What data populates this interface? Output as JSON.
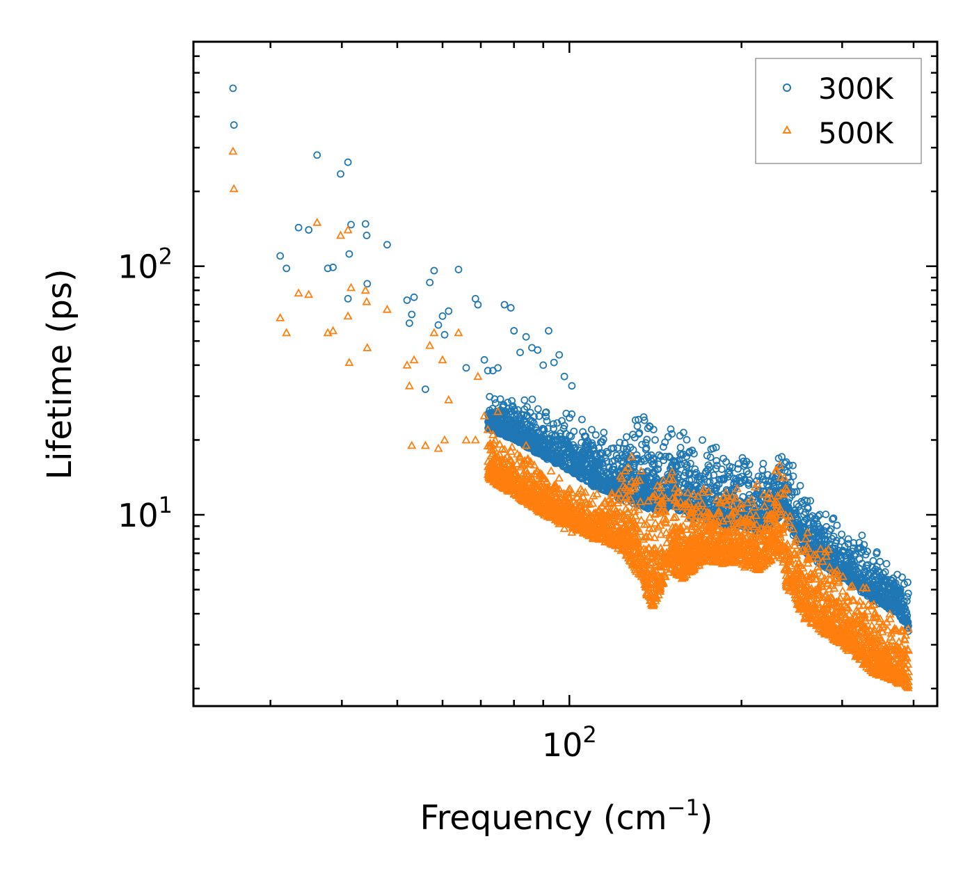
{
  "chart_data": {
    "type": "scatter",
    "title": "",
    "xlabel": "Frequency (cm",
    "xlabel_sup": "−1",
    "xlabel_end": ")",
    "ylabel": "Lifetime (ps)",
    "xscale": "log",
    "yscale": "log",
    "xlim": [
      22,
      440
    ],
    "ylim": [
      1.7,
      800
    ],
    "x_ticks": [
      {
        "value": 100,
        "base": "10",
        "exp": "2"
      }
    ],
    "y_ticks": [
      {
        "value": 10,
        "base": "10",
        "exp": "1"
      },
      {
        "value": 100,
        "base": "10",
        "exp": "2"
      }
    ],
    "legend": {
      "position": "top-right"
    },
    "colors": {
      "300K": "#1f77b4",
      "500K": "#ff7f0e"
    },
    "series": [
      {
        "name": "300K",
        "marker": "circle",
        "color": "#1f77b4",
        "points": [
          [
            25.8,
            520
          ],
          [
            25.9,
            370
          ],
          [
            36.2,
            280
          ],
          [
            39.8,
            235
          ],
          [
            41.0,
            262
          ],
          [
            31.2,
            110
          ],
          [
            32.0,
            98
          ],
          [
            33.6,
            143
          ],
          [
            35.0,
            140
          ],
          [
            37.8,
            98
          ],
          [
            38.6,
            99
          ],
          [
            41.2,
            112
          ],
          [
            41.5,
            147
          ],
          [
            44.0,
            148
          ],
          [
            44.2,
            133
          ],
          [
            48.0,
            122
          ],
          [
            44.3,
            85
          ],
          [
            41.0,
            74
          ],
          [
            52.0,
            73
          ],
          [
            52.5,
            59
          ],
          [
            53.0,
            64
          ],
          [
            53.5,
            75
          ],
          [
            56.0,
            32
          ],
          [
            57.0,
            86
          ],
          [
            58.0,
            96
          ],
          [
            59.0,
            58
          ],
          [
            60.0,
            63
          ],
          [
            60.5,
            53
          ],
          [
            61.5,
            66
          ],
          [
            64.0,
            97
          ],
          [
            66.0,
            39
          ],
          [
            68.5,
            74
          ],
          [
            69.2,
            70
          ],
          [
            71.0,
            42
          ],
          [
            72.0,
            38
          ],
          [
            73.5,
            38
          ],
          [
            75.0,
            39
          ],
          [
            77.0,
            70
          ],
          [
            79.0,
            68
          ],
          [
            80.0,
            55
          ],
          [
            82.0,
            45
          ],
          [
            84.0,
            52
          ],
          [
            86.0,
            47
          ],
          [
            88.0,
            46
          ],
          [
            90.0,
            40
          ],
          [
            92.0,
            55
          ],
          [
            94.0,
            41
          ],
          [
            96.0,
            44
          ],
          [
            98.0,
            36
          ],
          [
            101.0,
            33
          ]
        ]
      },
      {
        "name": "500K",
        "marker": "triangle",
        "color": "#ff7f0e",
        "points": [
          [
            25.8,
            290
          ],
          [
            25.9,
            205
          ],
          [
            36.2,
            150
          ],
          [
            39.8,
            133
          ],
          [
            41.0,
            140
          ],
          [
            31.2,
            62
          ],
          [
            32.0,
            54
          ],
          [
            33.6,
            78
          ],
          [
            35.0,
            77
          ],
          [
            37.8,
            54
          ],
          [
            38.6,
            55
          ],
          [
            41.2,
            41
          ],
          [
            41.5,
            82
          ],
          [
            44.0,
            80
          ],
          [
            44.2,
            72
          ],
          [
            48.0,
            67
          ],
          [
            44.3,
            47
          ],
          [
            41.0,
            63
          ],
          [
            52.0,
            40
          ],
          [
            52.5,
            33
          ],
          [
            53.0,
            19
          ],
          [
            53.5,
            42
          ],
          [
            56.0,
            19
          ],
          [
            57.0,
            48
          ],
          [
            58.0,
            54
          ],
          [
            59.0,
            18.5
          ],
          [
            60.0,
            42
          ],
          [
            60.5,
            20
          ],
          [
            61.5,
            29
          ],
          [
            64.0,
            54
          ],
          [
            66.0,
            20
          ],
          [
            68.5,
            20
          ],
          [
            69.2,
            36
          ],
          [
            71.0,
            25
          ],
          [
            72.0,
            22
          ],
          [
            73.5,
            21
          ],
          [
            75.0,
            26
          ],
          [
            77.0,
            16
          ],
          [
            79.0,
            18
          ],
          [
            80.0,
            14
          ],
          [
            82.0,
            17
          ],
          [
            84.0,
            19
          ],
          [
            86.0,
            14
          ],
          [
            88.0,
            15
          ],
          [
            90.0,
            12
          ],
          [
            92.0,
            11
          ],
          [
            94.0,
            13
          ],
          [
            96.0,
            9.2
          ],
          [
            98.0,
            8.8
          ],
          [
            101.0,
            8.5
          ]
        ]
      }
    ],
    "band_300K": {
      "x": [
        72,
        80,
        90,
        100,
        110,
        120,
        125,
        130,
        138,
        145,
        150,
        158,
        165,
        175,
        185,
        195,
        205,
        215,
        222,
        230,
        236,
        240,
        248,
        258,
        270,
        285,
        300,
        320,
        340,
        360,
        375,
        385,
        392
      ],
      "upper": [
        32,
        31,
        30,
        27,
        24,
        22,
        24,
        31,
        26,
        22,
        28,
        23,
        22,
        21,
        20,
        18,
        17.5,
        17,
        18,
        21,
        25,
        24,
        16,
        13,
        12.5,
        11,
        9.5,
        9,
        7.5,
        6.8,
        6.5,
        6.2,
        6.0
      ],
      "lower": [
        22,
        20,
        17,
        15,
        13,
        12,
        11,
        11,
        10.5,
        10,
        11,
        10,
        9.5,
        9.5,
        9,
        9,
        8.8,
        8.5,
        8.8,
        9.5,
        10,
        9.5,
        8,
        7,
        6.5,
        6,
        5.5,
        5,
        4.5,
        4.2,
        4.0,
        3.6,
        3.3
      ]
    },
    "band_500K": {
      "x": [
        72,
        80,
        90,
        100,
        110,
        120,
        125,
        130,
        135,
        138,
        145,
        150,
        158,
        165,
        175,
        185,
        195,
        205,
        215,
        222,
        230,
        236,
        240,
        248,
        258,
        270,
        285,
        300,
        320,
        340,
        360,
        375,
        385,
        392
      ],
      "upper": [
        22,
        20,
        16,
        14,
        13,
        14,
        17,
        20,
        15,
        14,
        16,
        18,
        15,
        14,
        14,
        13.5,
        13,
        13,
        13.5,
        15,
        18,
        17,
        14,
        11,
        9.5,
        8.5,
        7.5,
        6.5,
        5.8,
        5.0,
        4.5,
        4.2,
        4.0,
        3.8
      ],
      "lower": [
        14,
        12,
        10,
        9,
        8,
        7.5,
        7,
        6,
        5.5,
        4,
        5,
        6,
        5.5,
        6,
        6.5,
        6.3,
        6.3,
        6.1,
        6,
        6.2,
        7,
        6.5,
        5,
        4.5,
        3.8,
        3.5,
        3.2,
        3.0,
        2.6,
        2.3,
        2.2,
        2.1,
        2.05,
        2.0
      ]
    }
  }
}
